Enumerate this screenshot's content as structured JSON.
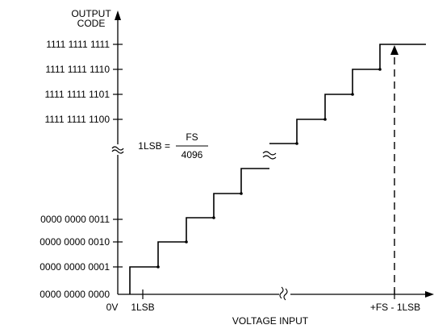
{
  "diagram": {
    "y_axis_title": [
      "OUTPUT",
      "CODE"
    ],
    "x_axis_title": "VOLTAGE INPUT",
    "y_tick_labels": [
      "1111 1111 1111",
      "1111 1111 1110",
      "1111 1111 1101",
      "1111 1111 1100",
      "0000 0000 0011",
      "0000 0000 0010",
      "0000 0000 0001",
      "0000 0000 0000"
    ],
    "x_tick_labels": {
      "zero": "0V",
      "one_lsb": "1LSB",
      "fs_minus_lsb": "+FS - 1LSB"
    },
    "formula": {
      "lhs": "1LSB =",
      "numerator": "FS",
      "denominator": "4096"
    },
    "break_symbol": "≈",
    "colors": {
      "line": "#000000",
      "background": "#ffffff"
    }
  }
}
